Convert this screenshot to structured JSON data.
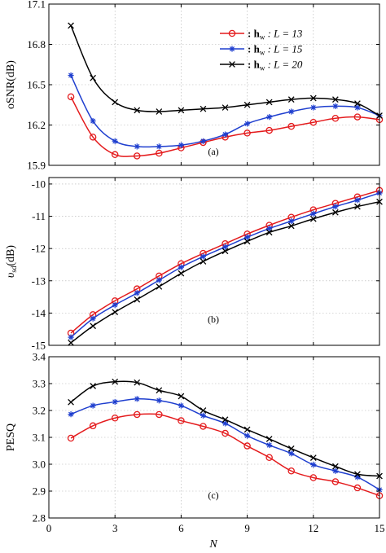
{
  "x_label": "N",
  "x_ticks": [
    0,
    3,
    6,
    9,
    12,
    15
  ],
  "legend": {
    "entries": [
      {
        "text": ": h",
        "sub": "w",
        "rest": ": L = 13",
        "color": "#e41a1c",
        "marker": "circle"
      },
      {
        "text": ": h",
        "sub": "w",
        "rest": ": L = 15",
        "color": "#1f3fcf",
        "marker": "star"
      },
      {
        "text": ": h",
        "sub": "w",
        "rest": ": L = 20",
        "color": "#000000",
        "marker": "x"
      }
    ]
  },
  "chart_data": [
    {
      "type": "line",
      "panel": "(a)",
      "ylabel": "oSNR(dB)",
      "xlim": [
        0,
        15
      ],
      "ylim": [
        15.9,
        17.1
      ],
      "yticks": [
        15.9,
        16.2,
        16.5,
        16.8,
        17.1
      ],
      "x": [
        1,
        2,
        3,
        4,
        5,
        6,
        7,
        8,
        9,
        10,
        11,
        12,
        13,
        14,
        15
      ],
      "series": [
        {
          "name": "h_w : L = 13",
          "color": "#e41a1c",
          "marker": "circle",
          "values": [
            16.41,
            16.11,
            15.98,
            15.97,
            15.99,
            16.03,
            16.07,
            16.11,
            16.14,
            16.16,
            16.19,
            16.22,
            16.25,
            16.26,
            16.24
          ]
        },
        {
          "name": "h_w : L = 15",
          "color": "#1f3fcf",
          "marker": "star",
          "values": [
            16.57,
            16.23,
            16.08,
            16.04,
            16.04,
            16.05,
            16.08,
            16.13,
            16.21,
            16.26,
            16.3,
            16.33,
            16.34,
            16.33,
            16.27
          ]
        },
        {
          "name": "h_w : L = 20",
          "color": "#000000",
          "marker": "x",
          "values": [
            16.94,
            16.55,
            16.37,
            16.31,
            16.3,
            16.31,
            16.32,
            16.33,
            16.35,
            16.37,
            16.39,
            16.4,
            16.39,
            16.36,
            16.27
          ]
        }
      ]
    },
    {
      "type": "line",
      "panel": "(b)",
      "ylabel": "υsd(dB)",
      "xlim": [
        0,
        15
      ],
      "ylim": [
        -15,
        -9.8
      ],
      "yticks": [
        -15,
        -14,
        -13,
        -12,
        -11,
        -10
      ],
      "x": [
        1,
        2,
        3,
        4,
        5,
        6,
        7,
        8,
        9,
        10,
        11,
        12,
        13,
        14,
        15
      ],
      "series": [
        {
          "name": "h_w : L = 13",
          "color": "#e41a1c",
          "marker": "circle",
          "values": [
            -14.62,
            -14.05,
            -13.62,
            -13.25,
            -12.85,
            -12.47,
            -12.15,
            -11.85,
            -11.55,
            -11.28,
            -11.03,
            -10.8,
            -10.6,
            -10.4,
            -10.2
          ]
        },
        {
          "name": "h_w : L = 15",
          "color": "#1f3fcf",
          "marker": "star",
          "values": [
            -14.75,
            -14.17,
            -13.75,
            -13.38,
            -12.98,
            -12.58,
            -12.25,
            -11.95,
            -11.65,
            -11.38,
            -11.15,
            -10.92,
            -10.7,
            -10.5,
            -10.28
          ]
        },
        {
          "name": "h_w : L = 20",
          "color": "#000000",
          "marker": "x",
          "values": [
            -14.92,
            -14.4,
            -13.97,
            -13.58,
            -13.18,
            -12.77,
            -12.4,
            -12.08,
            -11.78,
            -11.5,
            -11.3,
            -11.08,
            -10.88,
            -10.7,
            -10.55
          ]
        }
      ]
    },
    {
      "type": "line",
      "panel": "(c)",
      "ylabel": "PESQ",
      "xlim": [
        0,
        15
      ],
      "ylim": [
        2.8,
        3.4
      ],
      "yticks": [
        2.8,
        2.9,
        3.0,
        3.1,
        3.2,
        3.3,
        3.4
      ],
      "x": [
        1,
        2,
        3,
        4,
        5,
        6,
        7,
        8,
        9,
        10,
        11,
        12,
        13,
        14,
        15
      ],
      "series": [
        {
          "name": "h_w : L = 13",
          "color": "#e41a1c",
          "marker": "circle",
          "values": [
            3.097,
            3.143,
            3.172,
            3.185,
            3.185,
            3.162,
            3.141,
            3.115,
            3.068,
            3.025,
            2.975,
            2.95,
            2.935,
            2.912,
            2.883
          ]
        },
        {
          "name": "h_w : L = 15",
          "color": "#1f3fcf",
          "marker": "star",
          "values": [
            3.186,
            3.218,
            3.232,
            3.243,
            3.237,
            3.218,
            3.181,
            3.152,
            3.106,
            3.071,
            3.04,
            2.998,
            2.975,
            2.952,
            2.905
          ]
        },
        {
          "name": "h_w : L = 20",
          "color": "#000000",
          "marker": "x",
          "values": [
            3.231,
            3.291,
            3.307,
            3.304,
            3.275,
            3.253,
            3.2,
            3.166,
            3.129,
            3.094,
            3.058,
            3.024,
            2.992,
            2.963,
            2.956
          ]
        }
      ]
    }
  ]
}
